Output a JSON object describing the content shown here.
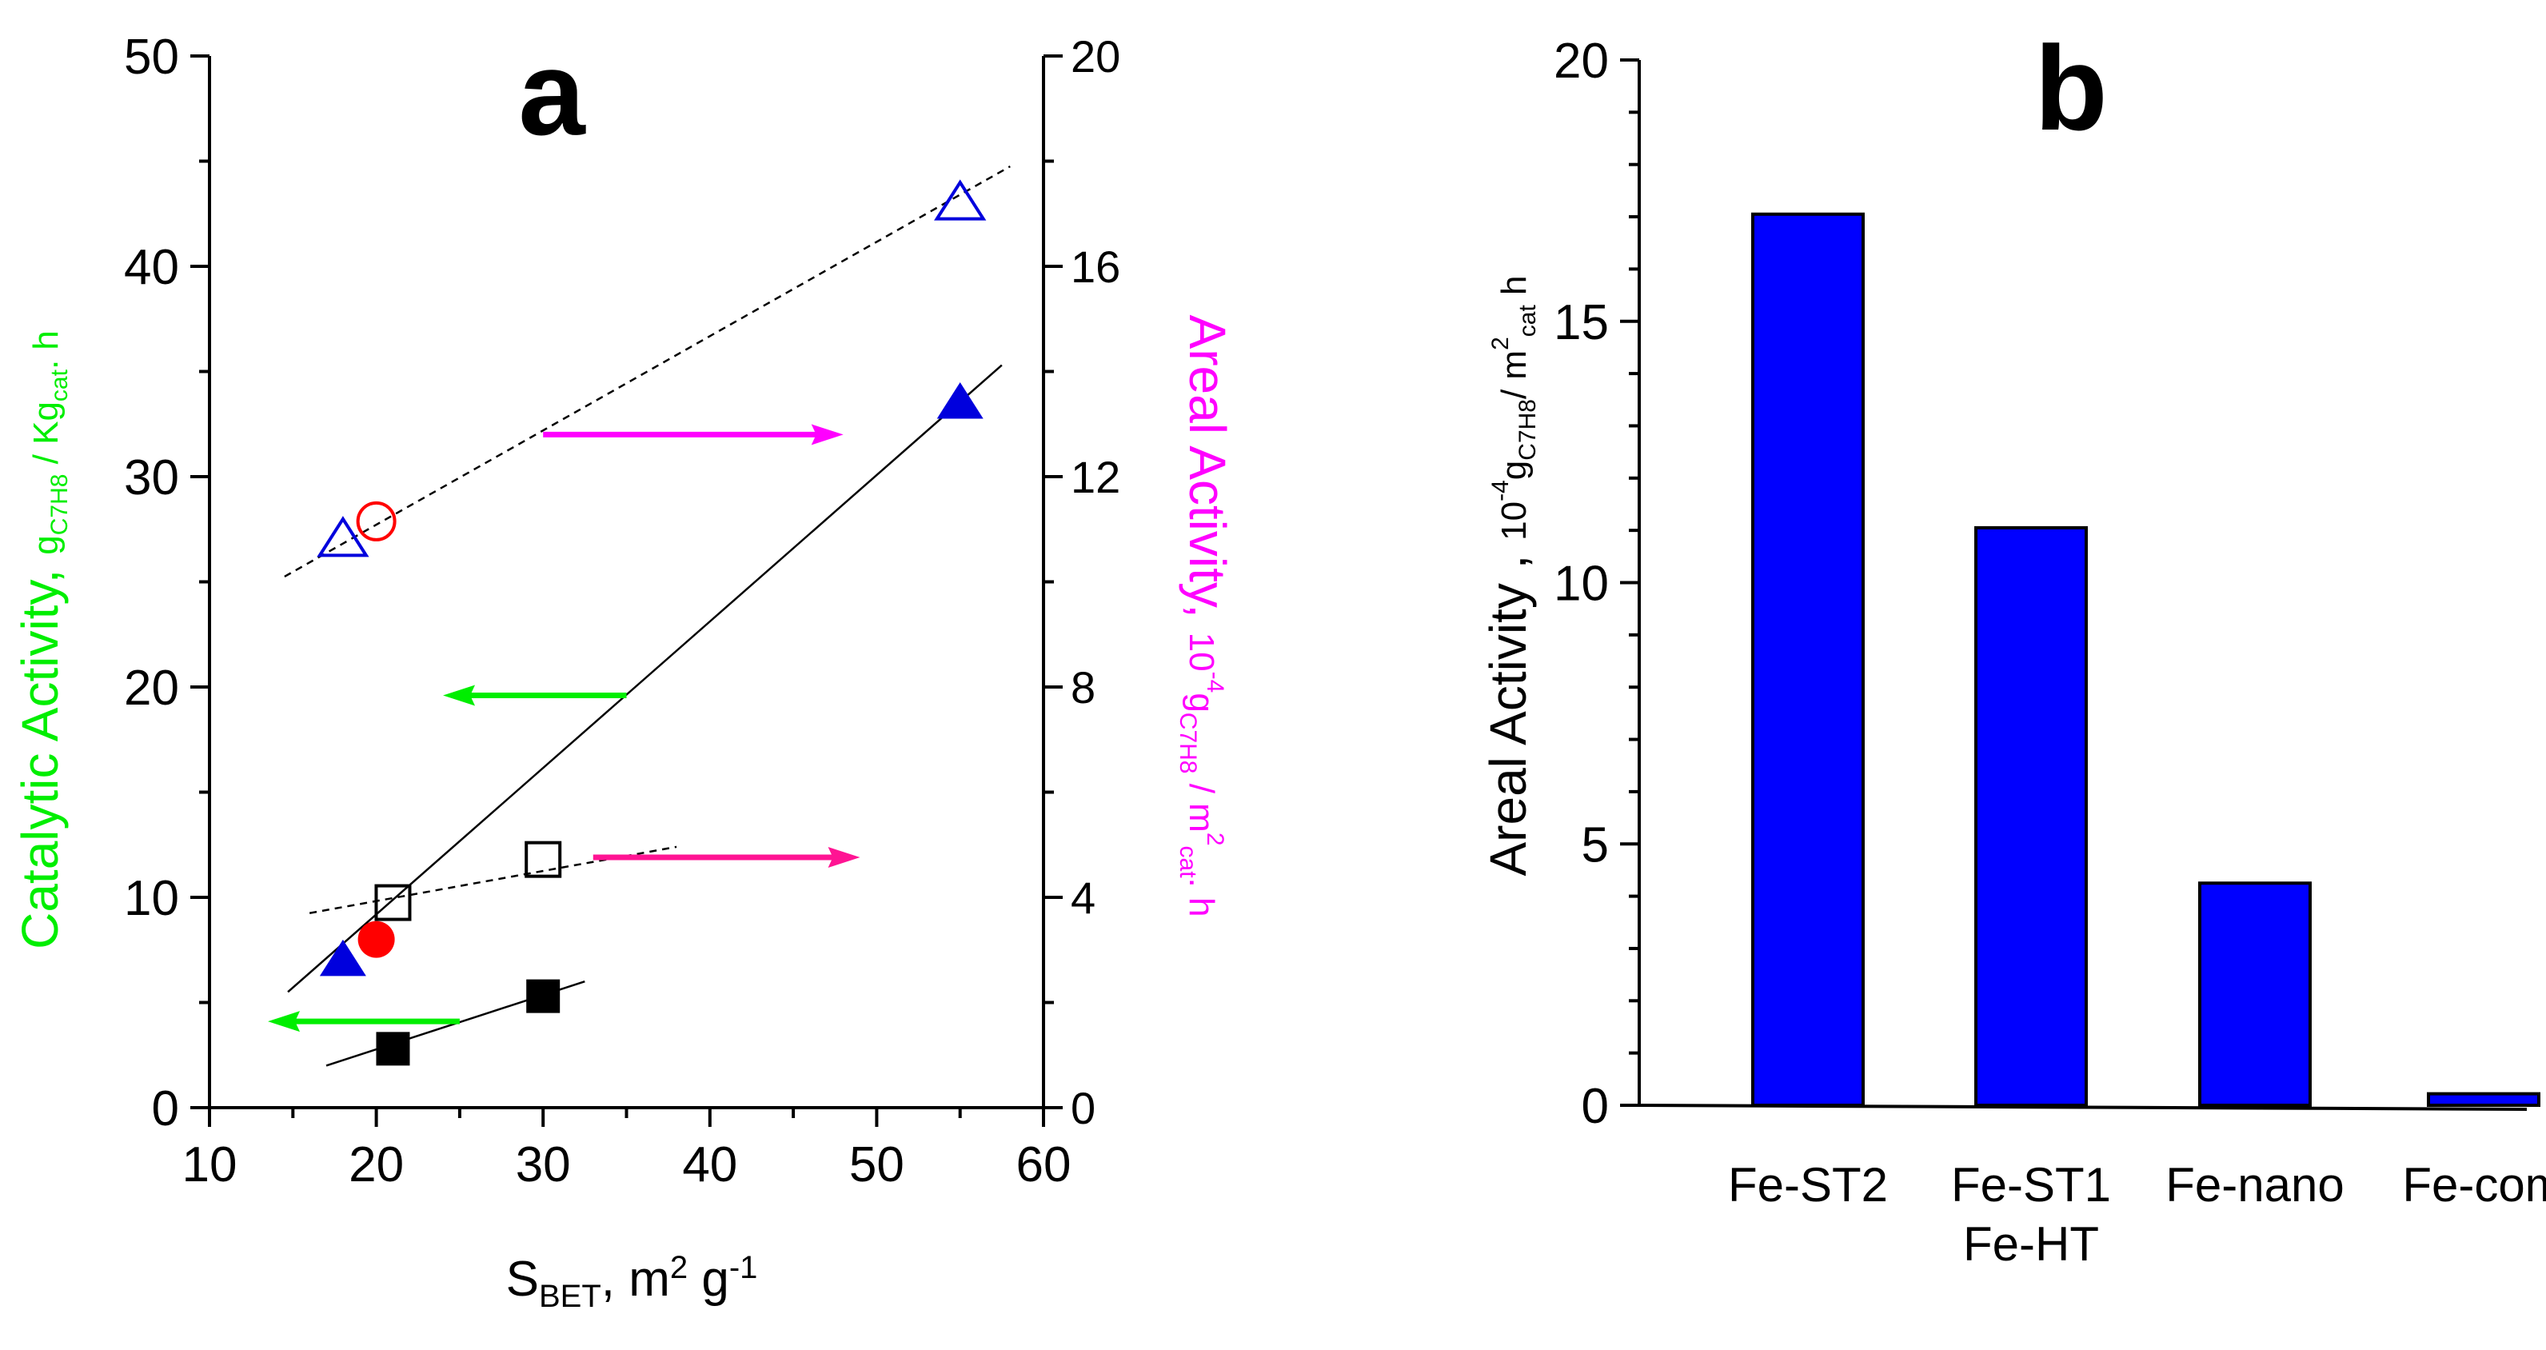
{
  "chart_data": [
    {
      "panel_label": "a",
      "type": "scatter",
      "xlabel": {
        "main": "S",
        "sub": "BET",
        "rest": ", m",
        "sup": "2",
        "rest2": " g",
        "sup2": "-1"
      },
      "xlim": [
        10,
        60
      ],
      "xticks": [
        10,
        20,
        30,
        40,
        50,
        60
      ],
      "ylim_left": [
        0,
        50
      ],
      "yticks_left": [
        0,
        10,
        20,
        30,
        40,
        50
      ],
      "ylim_right": [
        0,
        20
      ],
      "yticks_right": [
        0,
        4,
        8,
        12,
        16,
        20
      ],
      "ylabel_left": {
        "main": "Catalytic Activity",
        "sep": ", ",
        "g": "g",
        "gsub": "C7H8",
        "slash": " / Kg",
        "kgsub": "cat",
        "rest": ". h"
      },
      "ylabel_right": {
        "main": "Areal Activity",
        "sep": ", ",
        "p": "10",
        "psup": "-4",
        "g": "g",
        "gsub": "C7H8",
        "slash": " / m",
        "msup": "2",
        "msub": "cat",
        "rest": ". h"
      },
      "colors": {
        "left_axis": "#00ee00",
        "right_axis": "#ff00ff",
        "blue": "#0000dd",
        "red": "#ff0000",
        "black": "#000000",
        "pink": "#ff1493"
      },
      "series": [
        {
          "name": "filled triangles",
          "axis": "left",
          "marker": "triangle",
          "filled": true,
          "color": "#0000dd",
          "points": [
            [
              18,
              7
            ],
            [
              55,
              33.5
            ]
          ]
        },
        {
          "name": "filled circle",
          "axis": "left",
          "marker": "circle",
          "filled": true,
          "color": "#ff0000",
          "points": [
            [
              20,
              8
            ]
          ]
        },
        {
          "name": "filled squares",
          "axis": "left",
          "marker": "square",
          "filled": true,
          "color": "#000000",
          "points": [
            [
              21,
              2.8
            ],
            [
              30,
              5.3
            ]
          ]
        },
        {
          "name": "open triangles",
          "axis": "right",
          "marker": "triangle",
          "filled": false,
          "color": "#0000dd",
          "points": [
            [
              18,
              10.8
            ],
            [
              55,
              17.2
            ]
          ]
        },
        {
          "name": "open circle",
          "axis": "right",
          "marker": "circle",
          "filled": false,
          "color": "#ff0000",
          "points": [
            [
              20,
              11.15
            ]
          ]
        },
        {
          "name": "open squares",
          "axis": "right",
          "marker": "square",
          "filled": false,
          "color": "#000000",
          "points": [
            [
              21,
              3.9
            ],
            [
              30,
              4.72
            ]
          ]
        }
      ],
      "fit_lines": [
        {
          "axis": "left",
          "style": "solid",
          "from": [
            14.7,
            5.5
          ],
          "to": [
            57.5,
            35.3
          ]
        },
        {
          "axis": "left",
          "style": "solid",
          "from": [
            17,
            2.0
          ],
          "to": [
            32.5,
            6.0
          ]
        },
        {
          "axis": "right",
          "style": "dashed",
          "from": [
            14.5,
            10.1
          ],
          "to": [
            58,
            17.9
          ]
        },
        {
          "axis": "right",
          "style": "dashed",
          "from": [
            16,
            3.7
          ],
          "to": [
            38,
            4.96
          ]
        }
      ],
      "arrows": [
        {
          "direction": "right",
          "color": "#ff00ff",
          "axis": "left",
          "y": 32,
          "from_x": 30,
          "to_x": 48
        },
        {
          "direction": "left",
          "color": "#00ee00",
          "axis": "left",
          "y": 19.6,
          "from_x": 35,
          "to_x": 24
        },
        {
          "direction": "right",
          "color": "#ff1493",
          "axis": "left",
          "y": 11.9,
          "from_x": 33,
          "to_x": 49
        },
        {
          "direction": "left",
          "color": "#00ee00",
          "axis": "left",
          "y": 4.1,
          "from_x": 25,
          "to_x": 13.5
        }
      ]
    },
    {
      "panel_label": "b",
      "type": "bar",
      "categories": [
        [
          "Fe-ST2"
        ],
        [
          "Fe-ST1",
          "Fe-HT"
        ],
        [
          "Fe-nano"
        ],
        [
          "Fe-com"
        ]
      ],
      "values": [
        17.05,
        11.05,
        4.25,
        0.22
      ],
      "ylim": [
        0,
        20
      ],
      "yticks": [
        0,
        5,
        10,
        15,
        20
      ],
      "ylabel": {
        "main": "Areal Activity",
        "sep": " , ",
        "p": "10",
        "psup": "-4",
        "g": "g",
        "gsub": "C7H8",
        "slash": "/ m",
        "msup": "2",
        "msub": "cat",
        "rest": " h"
      },
      "bar_color": "#0000ff"
    }
  ]
}
